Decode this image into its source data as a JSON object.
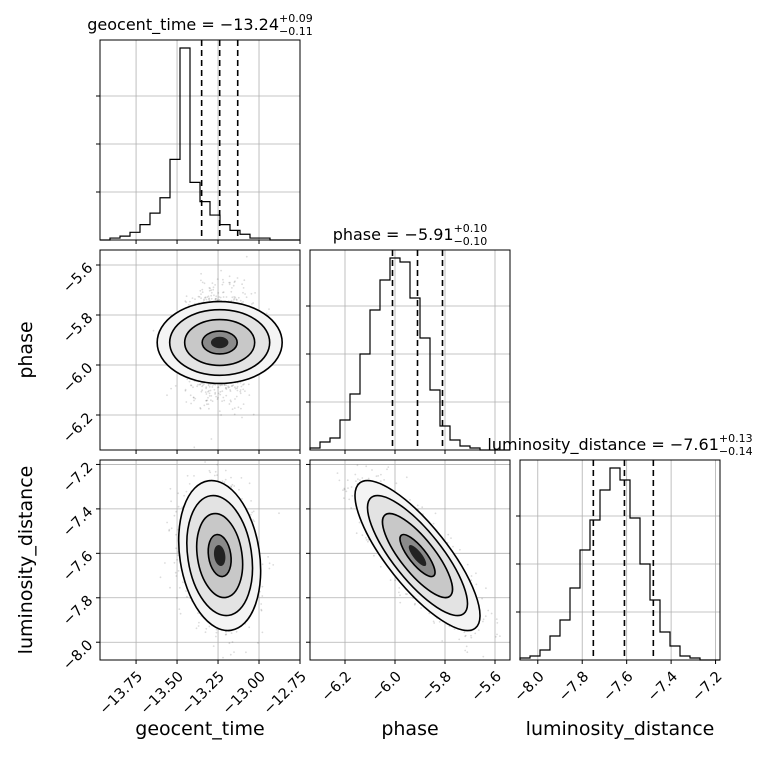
{
  "chart_data": {
    "type": "corner",
    "parameters": [
      {
        "name": "geocent_time",
        "label": "geocent_time",
        "range": [
          -13.97,
          -12.75
        ],
        "ticks": [
          -13.75,
          -13.5,
          -13.25,
          -13.0,
          -12.75
        ],
        "tick_labels": [
          "−13.75",
          "−13.50",
          "−13.25",
          "−13.00",
          "−12.75"
        ],
        "quantiles": [
          -13.35,
          -13.24,
          -13.13
        ],
        "title": {
          "main": "geocent_time = −13.24",
          "upper": "+0.09",
          "lower": "−0.11"
        },
        "hist": {
          "edges_start": -13.97,
          "bin_width": 0.061,
          "counts": [
            0,
            1,
            2,
            4,
            8,
            14,
            22,
            42,
            100,
            30,
            20,
            13,
            8,
            5,
            3,
            1,
            1,
            0,
            0,
            0
          ]
        }
      },
      {
        "name": "phase",
        "label": "phase",
        "range": [
          -6.34,
          -5.54
        ],
        "ticks": [
          -6.2,
          -6.0,
          -5.8,
          -5.6
        ],
        "tick_labels": [
          "−6.2",
          "−6.0",
          "−5.8",
          "−5.6"
        ],
        "quantiles": [
          -6.01,
          -5.91,
          -5.81
        ],
        "title": {
          "main": "phase = −5.91",
          "upper": "+0.10",
          "lower": "−0.10"
        },
        "hist": {
          "edges_start": -6.34,
          "bin_width": 0.04,
          "counts": [
            1,
            4,
            6,
            15,
            28,
            48,
            70,
            85,
            96,
            94,
            76,
            56,
            30,
            12,
            5,
            2,
            1,
            0,
            0,
            0
          ]
        }
      },
      {
        "name": "luminosity_distance",
        "label": "luminosity_distance",
        "range": [
          -8.08,
          -7.18
        ],
        "ticks": [
          -8.0,
          -7.8,
          -7.6,
          -7.4,
          -7.2
        ],
        "tick_labels": [
          "−8.0",
          "−7.8",
          "−7.6",
          "−7.4",
          "−7.2"
        ],
        "quantiles": [
          -7.75,
          -7.61,
          -7.48
        ],
        "title": {
          "main": "luminosity_distance = −7.61",
          "upper": "+0.13",
          "lower": "−0.14"
        },
        "hist": {
          "edges_start": -8.08,
          "bin_width": 0.045,
          "counts": [
            1,
            2,
            5,
            12,
            20,
            36,
            55,
            70,
            85,
            96,
            90,
            71,
            48,
            30,
            14,
            7,
            2,
            1,
            0,
            0
          ]
        }
      }
    ],
    "pairs": [
      {
        "x": "geocent_time",
        "y": "phase",
        "center": [
          -13.24,
          -5.91
        ],
        "sigma": [
          0.1,
          0.1
        ],
        "rho": 0.0
      },
      {
        "x": "geocent_time",
        "y": "luminosity_distance",
        "center": [
          -13.24,
          -7.61
        ],
        "sigma": [
          0.1,
          0.135
        ],
        "rho": -0.2
      },
      {
        "x": "phase",
        "y": "luminosity_distance",
        "center": [
          -5.91,
          -7.61
        ],
        "sigma": [
          0.1,
          0.135
        ],
        "rho": -0.8
      }
    ],
    "grid": true,
    "line_color": "#000000"
  }
}
